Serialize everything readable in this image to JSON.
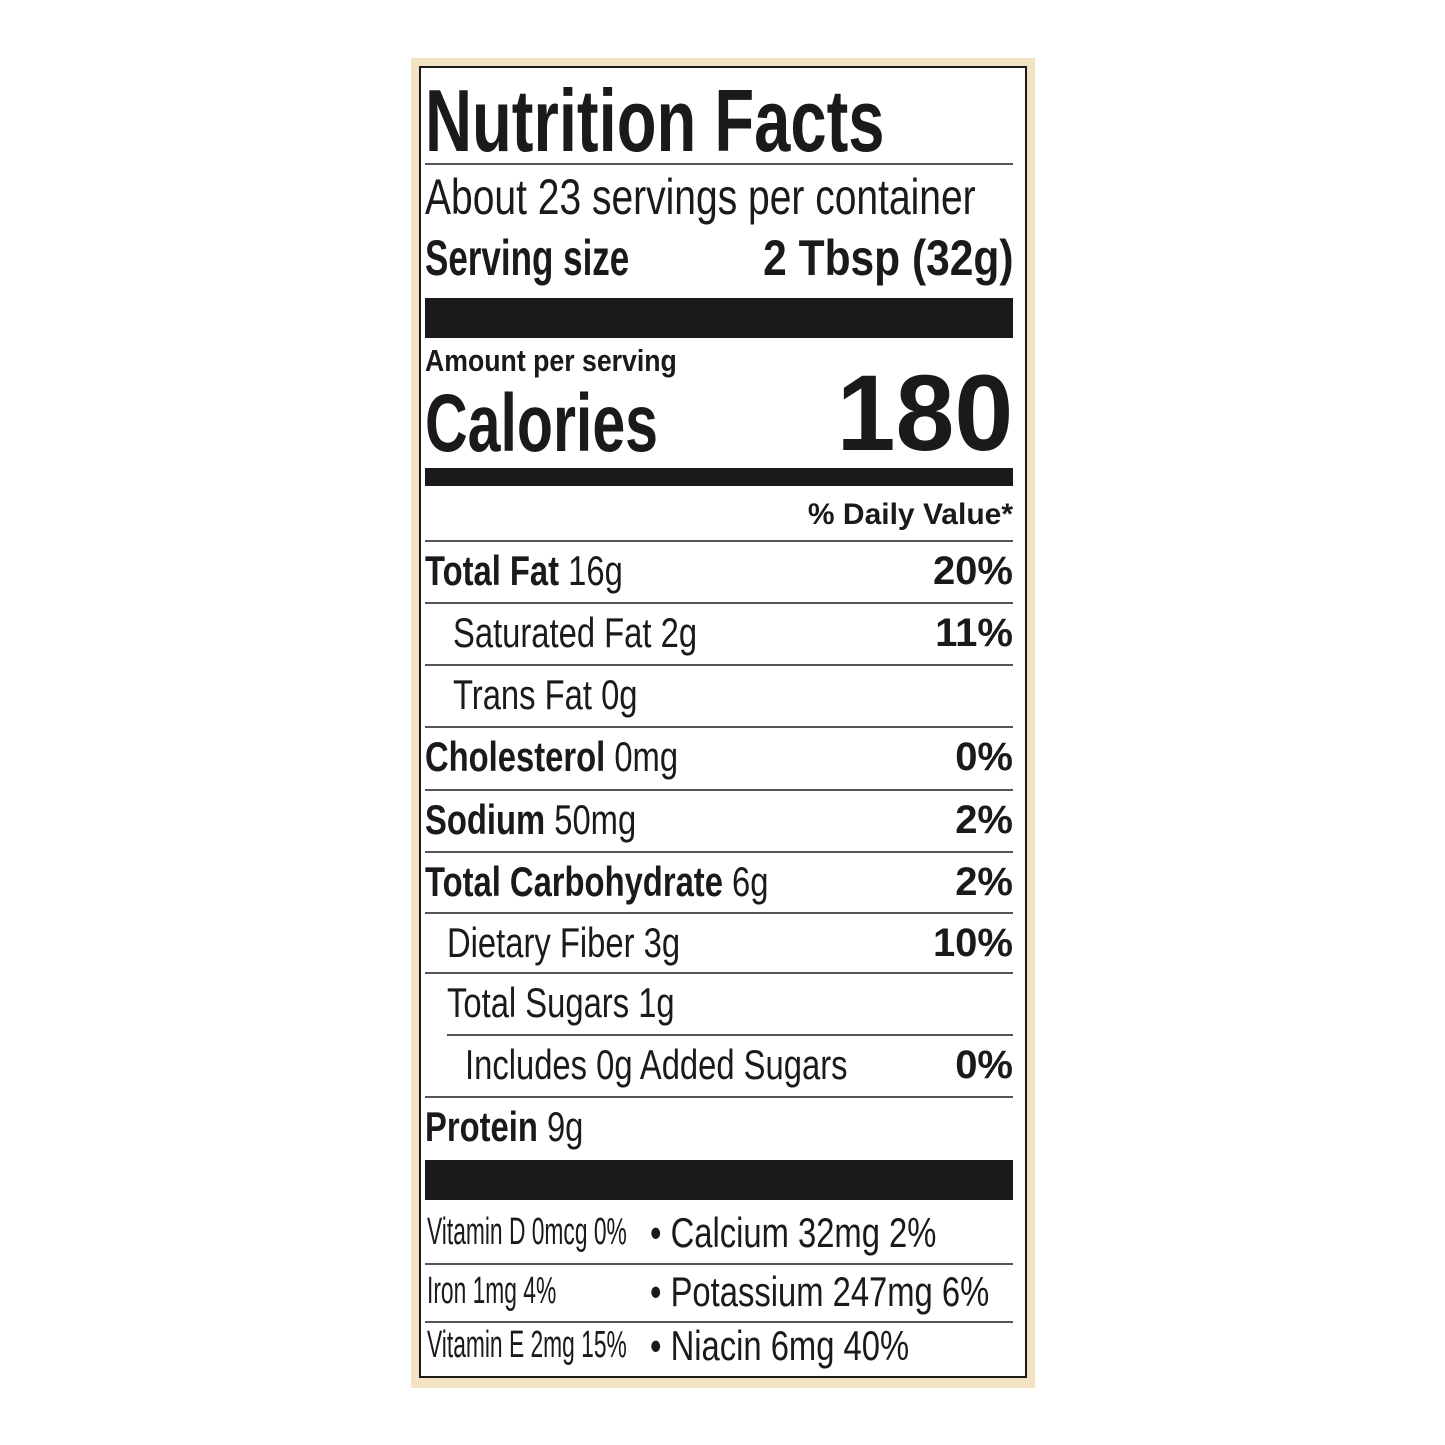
{
  "title": "Nutrition Facts",
  "servings_per_container": "About 23 servings per container",
  "serving_size": {
    "label": "Serving size",
    "value": "2 Tbsp (32g)"
  },
  "amount_per_serving": "Amount per serving",
  "calories": {
    "label": "Calories",
    "value": "180"
  },
  "daily_value_header": "% Daily Value*",
  "nutrients": [
    {
      "name": "Total Fat",
      "amount": "16g",
      "dv": "20%"
    },
    {
      "name": "Saturated Fat",
      "amount": "2g",
      "dv": "11%"
    },
    {
      "name": "Trans Fat",
      "amount": "0g",
      "dv": ""
    },
    {
      "name": "Cholesterol",
      "amount": "0mg",
      "dv": "0%"
    },
    {
      "name": "Sodium",
      "amount": "50mg",
      "dv": "2%"
    },
    {
      "name": "Total Carbohydrate",
      "amount": "6g",
      "dv": "2%"
    },
    {
      "name": "Dietary Fiber",
      "amount": "3g",
      "dv": "10%"
    },
    {
      "name": "Total Sugars",
      "amount": "1g",
      "dv": ""
    },
    {
      "name": "Includes 0g Added Sugars",
      "amount": "",
      "dv": "0%"
    },
    {
      "name": "Protein",
      "amount": "9g",
      "dv": ""
    }
  ],
  "micronutrients": [
    {
      "left": "Vitamin D 0mcg 0%",
      "right": "• Calcium 32mg 2%"
    },
    {
      "left": "Iron 1mg 4%",
      "right": "• Potassium 247mg 6%"
    },
    {
      "left": "Vitamin E 2mg 15%",
      "right": "• Niacin 6mg 40%"
    }
  ],
  "colors": {
    "ink": "#1a1a1a",
    "background": "#f3e3c3"
  }
}
